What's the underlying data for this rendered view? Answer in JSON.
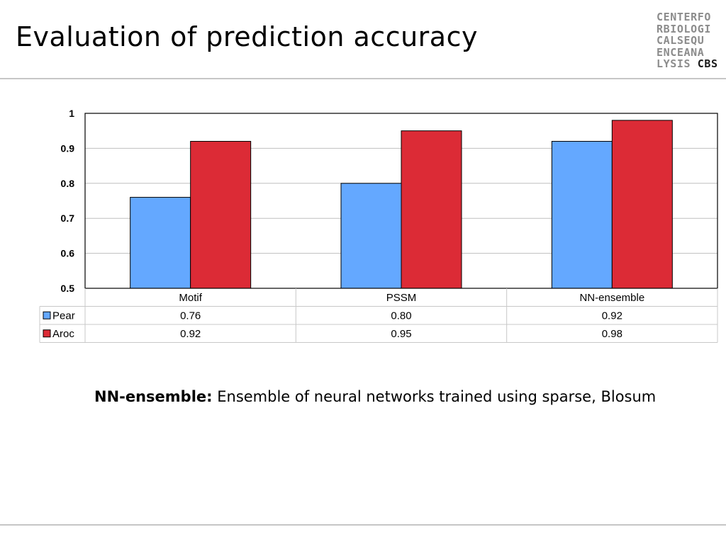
{
  "slide": {
    "title": "Evaluation of prediction accuracy",
    "logo_lines": [
      "CENTERFO",
      "RBIOLOGI",
      "CALSEQU",
      "ENCEANA",
      "LYSIS"
    ],
    "logo_brand": "CBS"
  },
  "note": {
    "term": "NN-ensemble:",
    "text": " Ensemble of neural networks trained using sparse, Blosum"
  },
  "colors": {
    "pear": "#64a8ff",
    "aroc": "#dc2b36",
    "grid": "#bfbfbf",
    "rule": "#c6c6c6"
  },
  "chart_data": {
    "type": "bar",
    "categories": [
      "Motif",
      "PSSM",
      "NN-ensemble"
    ],
    "series": [
      {
        "name": "Pear",
        "values": [
          0.76,
          0.8,
          0.92
        ],
        "labels": [
          "0.76",
          "0.80",
          "0.92"
        ]
      },
      {
        "name": "Aroc",
        "values": [
          0.92,
          0.95,
          0.98
        ],
        "labels": [
          "0.92",
          "0.95",
          "0.98"
        ]
      }
    ],
    "ylim": [
      0.5,
      1
    ],
    "yticks": [
      0.5,
      0.6,
      0.7,
      0.8,
      0.9,
      1
    ],
    "ytick_labels": [
      "0.5",
      "0.6",
      "0.7",
      "0.8",
      "0.9",
      "1"
    ],
    "grid": true,
    "legend": "data table"
  }
}
